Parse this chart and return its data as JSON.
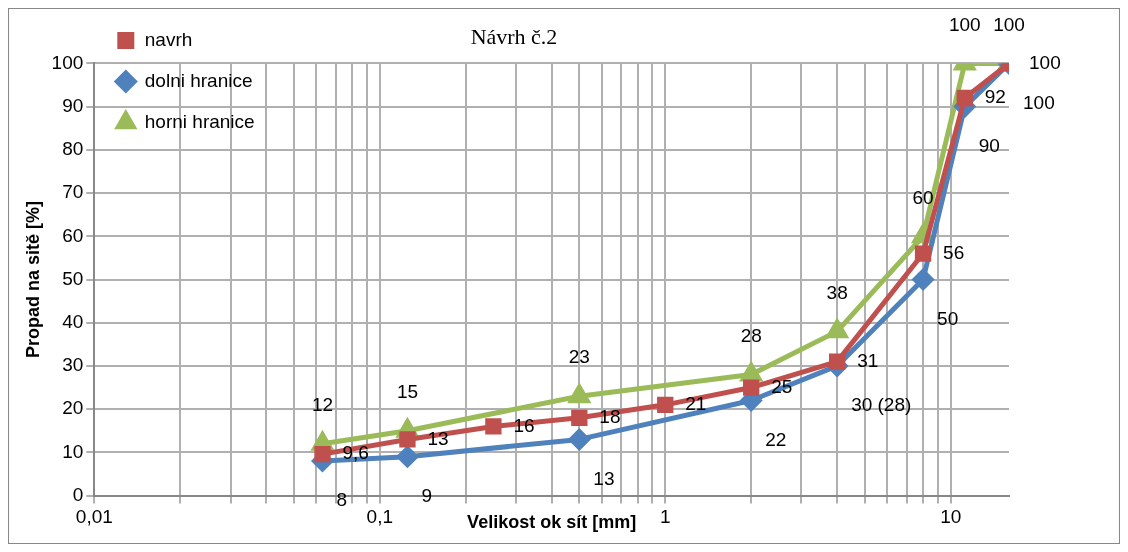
{
  "chart_data": {
    "type": "line",
    "title": "Návrh č.2",
    "xlabel": "Velikost ok sít [mm]",
    "ylabel": "Propad na sitě [%]",
    "log": "x",
    "grid": true,
    "legend": "top left",
    "xlim": [
      0.01,
      16
    ],
    "ylim": [
      0,
      100
    ],
    "xticks": [
      {
        "value": 0.01,
        "label": "0,01"
      },
      {
        "value": 0.02,
        "label": null
      },
      {
        "value": 0.03,
        "label": null
      },
      {
        "value": 0.04,
        "label": null
      },
      {
        "value": 0.05,
        "label": null
      },
      {
        "value": 0.06,
        "label": null
      },
      {
        "value": 0.07,
        "label": null
      },
      {
        "value": 0.08,
        "label": null
      },
      {
        "value": 0.09,
        "label": null
      },
      {
        "value": 0.1,
        "label": "0,1"
      },
      {
        "value": 0.2,
        "label": null
      },
      {
        "value": 0.3,
        "label": null
      },
      {
        "value": 0.4,
        "label": null
      },
      {
        "value": 0.5,
        "label": null
      },
      {
        "value": 0.6,
        "label": null
      },
      {
        "value": 0.7,
        "label": null
      },
      {
        "value": 0.8,
        "label": null
      },
      {
        "value": 0.9,
        "label": null
      },
      1,
      {
        "value": 2,
        "label": null
      },
      {
        "value": 3,
        "label": null
      },
      {
        "value": 4,
        "label": null
      },
      {
        "value": 5,
        "label": null
      },
      {
        "value": 6,
        "label": null
      },
      {
        "value": 7,
        "label": null
      },
      {
        "value": 8,
        "label": null
      },
      {
        "value": 9,
        "label": null
      },
      10
    ],
    "yticks": [
      0,
      10,
      20,
      30,
      40,
      50,
      60,
      70,
      80,
      90,
      100
    ],
    "series": [
      {
        "name": "navrh",
        "color": "#c0504d",
        "marker": "square",
        "x": [
          0.063,
          0.125,
          0.25,
          0.5,
          1,
          2,
          4,
          8,
          11.2,
          16
        ],
        "values": [
          9.6,
          13,
          16,
          18,
          21,
          25,
          31,
          56,
          92,
          100
        ],
        "value_labels": [
          "9,6",
          "13",
          "16",
          "18",
          "21",
          "25",
          "31",
          "56",
          "92",
          "100"
        ]
      },
      {
        "name": "dolni hranice",
        "color": "#4f81bd",
        "marker": "diamond",
        "x": [
          0.063,
          0.125,
          0.5,
          2,
          4,
          8,
          11.2,
          16
        ],
        "values": [
          8,
          9,
          13,
          22,
          30,
          50,
          90,
          100
        ],
        "value_labels": [
          "8",
          "9",
          "13",
          "22",
          "30 (28)",
          "50",
          "90",
          "100"
        ]
      },
      {
        "name": "horni hranice",
        "color": "#9bbb59",
        "marker": "triangle",
        "x": [
          0.063,
          0.125,
          0.5,
          2,
          4,
          8,
          11.2,
          16
        ],
        "values": [
          12,
          15,
          23,
          28,
          38,
          60,
          100,
          100
        ],
        "value_labels": [
          "12",
          "15",
          "23",
          "28",
          "38",
          "60",
          "100",
          "100"
        ]
      }
    ]
  }
}
